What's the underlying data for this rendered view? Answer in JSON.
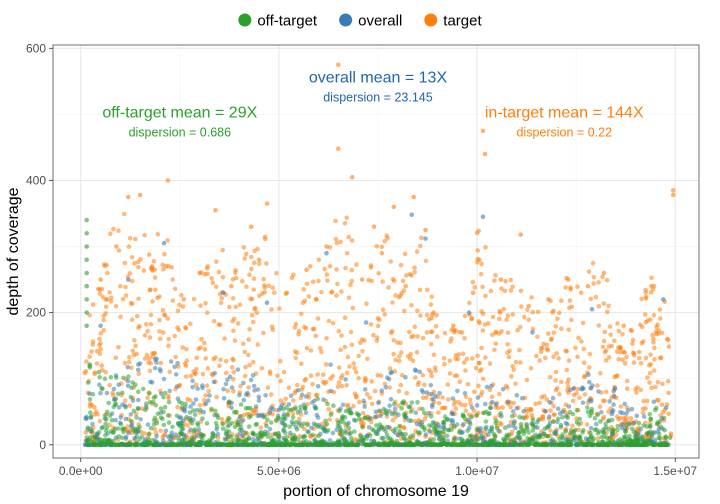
{
  "chart_data": {
    "type": "scatter",
    "xlabel": "portion of chromosome 19",
    "ylabel": "depth of coverage",
    "xlim": [
      -700000,
      15600000
    ],
    "ylim": [
      -20,
      605
    ],
    "x_ticks": [
      {
        "value": 0,
        "label": "0.0e+00"
      },
      {
        "value": 5000000,
        "label": "5.0e+06"
      },
      {
        "value": 10000000,
        "label": "1.0e+07"
      },
      {
        "value": 15000000,
        "label": "1.5e+07"
      }
    ],
    "y_ticks": [
      {
        "value": 0,
        "label": "0"
      },
      {
        "value": 200,
        "label": "200"
      },
      {
        "value": 400,
        "label": "400"
      },
      {
        "value": 600,
        "label": "600"
      }
    ],
    "grid": true,
    "legend": {
      "placement": "top",
      "entries": [
        {
          "label": "off-target",
          "color": "#2ca02c"
        },
        {
          "label": "overall",
          "color": "#3a7db5"
        },
        {
          "label": "target",
          "color": "#ff7f0e"
        }
      ]
    },
    "series": [
      {
        "name": "target",
        "color": "#ff7f0e",
        "points": [
          [
            1200000,
            375
          ],
          [
            1500000,
            378
          ],
          [
            2200000,
            400
          ],
          [
            3400000,
            355
          ],
          [
            4300000,
            330
          ],
          [
            4700000,
            365
          ],
          [
            6500000,
            575
          ],
          [
            6500000,
            448
          ],
          [
            6850000,
            405
          ],
          [
            7400000,
            330
          ],
          [
            7900000,
            360
          ],
          [
            8400000,
            375
          ],
          [
            8700000,
            325
          ],
          [
            10150000,
            475
          ],
          [
            10200000,
            440
          ],
          [
            11100000,
            318
          ],
          [
            14950000,
            385
          ],
          [
            14950000,
            378
          ],
          [
            500000,
            250
          ],
          [
            900000,
            300
          ],
          [
            1800000,
            270
          ],
          [
            2600000,
            220
          ],
          [
            3000000,
            260
          ],
          [
            3800000,
            240
          ],
          [
            4500000,
            280
          ],
          [
            5200000,
            230
          ],
          [
            5700000,
            265
          ],
          [
            6200000,
            300
          ],
          [
            7100000,
            250
          ],
          [
            7600000,
            290
          ],
          [
            8200000,
            240
          ],
          [
            8900000,
            200
          ],
          [
            9400000,
            180
          ],
          [
            9900000,
            230
          ],
          [
            10600000,
            250
          ],
          [
            11300000,
            210
          ],
          [
            11800000,
            220
          ],
          [
            12300000,
            250
          ],
          [
            12800000,
            240
          ],
          [
            13200000,
            260
          ],
          [
            13700000,
            180
          ],
          [
            14400000,
            240
          ],
          [
            14800000,
            160
          ]
        ],
        "envelope": [
          [
            100000,
            320
          ],
          [
            400000,
            280
          ],
          [
            800000,
            330
          ],
          [
            1100000,
            370
          ],
          [
            1400000,
            340
          ],
          [
            1700000,
            320
          ],
          [
            2000000,
            330
          ],
          [
            2300000,
            360
          ],
          [
            2600000,
            200
          ],
          [
            2900000,
            250
          ],
          [
            3200000,
            280
          ],
          [
            3500000,
            330
          ],
          [
            3800000,
            260
          ],
          [
            4100000,
            300
          ],
          [
            4400000,
            310
          ],
          [
            4700000,
            340
          ],
          [
            5000000,
            250
          ],
          [
            5300000,
            270
          ],
          [
            5600000,
            240
          ],
          [
            5900000,
            310
          ],
          [
            6200000,
            300
          ],
          [
            6500000,
            380
          ],
          [
            6800000,
            330
          ],
          [
            7100000,
            260
          ],
          [
            7400000,
            300
          ],
          [
            7700000,
            320
          ],
          [
            8000000,
            280
          ],
          [
            8300000,
            300
          ],
          [
            8600000,
            330
          ],
          [
            8900000,
            220
          ],
          [
            9200000,
            200
          ],
          [
            9500000,
            170
          ],
          [
            9800000,
            240
          ],
          [
            10100000,
            360
          ],
          [
            10400000,
            280
          ],
          [
            10700000,
            250
          ],
          [
            11000000,
            260
          ],
          [
            11300000,
            230
          ],
          [
            11600000,
            210
          ],
          [
            11900000,
            220
          ],
          [
            12200000,
            260
          ],
          [
            12500000,
            240
          ],
          [
            12800000,
            290
          ],
          [
            13100000,
            280
          ],
          [
            13400000,
            230
          ],
          [
            13700000,
            170
          ],
          [
            14000000,
            200
          ],
          [
            14300000,
            260
          ],
          [
            14600000,
            250
          ],
          [
            14900000,
            200
          ]
        ]
      },
      {
        "name": "overall",
        "color": "#3a7db5",
        "points": [
          [
            8350000,
            348
          ],
          [
            10150000,
            345
          ],
          [
            8700000,
            312
          ],
          [
            2100000,
            305
          ],
          [
            6200000,
            290
          ],
          [
            1200000,
            250
          ],
          [
            3600000,
            230
          ],
          [
            4700000,
            215
          ],
          [
            9800000,
            200
          ],
          [
            12900000,
            205
          ],
          [
            14700000,
            220
          ],
          [
            500000,
            180
          ],
          [
            7200000,
            185
          ],
          [
            11400000,
            170
          ]
        ],
        "envelope": [
          [
            100000,
            100
          ],
          [
            800000,
            120
          ],
          [
            1500000,
            130
          ],
          [
            2200000,
            160
          ],
          [
            2900000,
            90
          ],
          [
            3600000,
            120
          ],
          [
            4300000,
            110
          ],
          [
            5000000,
            80
          ],
          [
            5700000,
            100
          ],
          [
            6400000,
            130
          ],
          [
            7100000,
            90
          ],
          [
            7800000,
            110
          ],
          [
            8500000,
            120
          ],
          [
            9200000,
            70
          ],
          [
            9900000,
            100
          ],
          [
            10600000,
            90
          ],
          [
            11300000,
            80
          ],
          [
            12000000,
            70
          ],
          [
            12700000,
            110
          ],
          [
            13400000,
            90
          ],
          [
            14100000,
            60
          ],
          [
            14800000,
            90
          ]
        ]
      },
      {
        "name": "off-target",
        "color": "#2ca02c",
        "points": [
          [
            150000,
            340
          ],
          [
            150000,
            320
          ],
          [
            150000,
            300
          ],
          [
            150000,
            280
          ],
          [
            150000,
            260
          ],
          [
            150000,
            240
          ],
          [
            150000,
            220
          ],
          [
            150000,
            200
          ],
          [
            150000,
            180
          ]
        ],
        "envelope": [
          [
            100000,
            150
          ],
          [
            600000,
            100
          ],
          [
            1200000,
            110
          ],
          [
            1800000,
            90
          ],
          [
            2400000,
            70
          ],
          [
            3000000,
            60
          ],
          [
            3600000,
            70
          ],
          [
            4200000,
            60
          ],
          [
            4800000,
            50
          ],
          [
            5400000,
            60
          ],
          [
            6000000,
            70
          ],
          [
            6600000,
            60
          ],
          [
            7200000,
            50
          ],
          [
            7800000,
            60
          ],
          [
            8400000,
            70
          ],
          [
            9000000,
            40
          ],
          [
            9600000,
            50
          ],
          [
            10200000,
            60
          ],
          [
            10800000,
            50
          ],
          [
            11400000,
            40
          ],
          [
            12000000,
            40
          ],
          [
            12600000,
            60
          ],
          [
            13200000,
            50
          ],
          [
            13800000,
            30
          ],
          [
            14400000,
            60
          ],
          [
            14900000,
            50
          ]
        ]
      }
    ],
    "annotations": [
      {
        "title": "overall mean = 13X",
        "subtitle": "dispersion = 23.145",
        "color": "#2166ac",
        "x": 7500000,
        "y": 548
      },
      {
        "title": "off-target mean = 29X",
        "subtitle": "dispersion = 0.686",
        "color": "#2ca02c",
        "x": 2500000,
        "y": 495
      },
      {
        "title": "in-target mean = 144X",
        "subtitle": "dispersion = 0.22",
        "color": "#ff7f0e",
        "x": 12200000,
        "y": 495
      }
    ]
  }
}
